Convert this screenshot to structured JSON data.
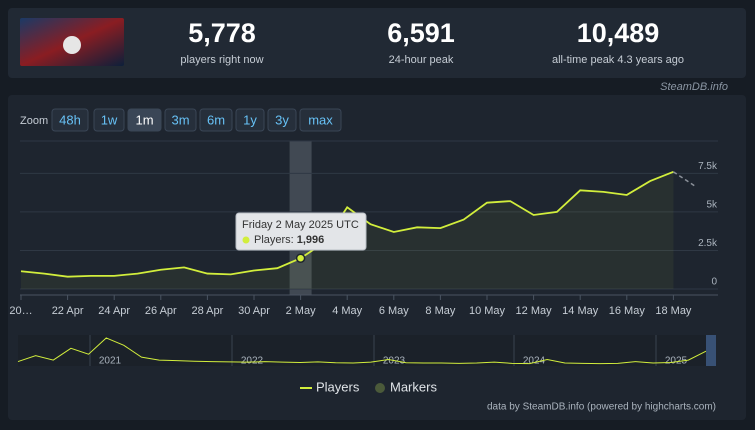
{
  "stats": [
    {
      "value": "5,778",
      "label": "players right now"
    },
    {
      "value": "6,591",
      "label": "24-hour peak"
    },
    {
      "value": "10,489",
      "label": "all-time peak 4.3 years ago"
    }
  ],
  "source": "SteamDB.info",
  "zoom": {
    "label": "Zoom",
    "options": [
      "48h",
      "1w",
      "1m",
      "3m",
      "6m",
      "1y",
      "3y",
      "max"
    ],
    "active": "1m"
  },
  "chart_data": {
    "type": "line",
    "categories": [
      "20…",
      null,
      "22 Apr",
      null,
      "24 Apr",
      null,
      "26 Apr",
      null,
      "28 Apr",
      null,
      "30 Apr",
      null,
      "2 May",
      null,
      "4 May",
      null,
      "6 May",
      null,
      "8 May",
      null,
      "10 May",
      null,
      "12 May",
      null,
      "14 May",
      null,
      "16 May",
      null,
      "18 May",
      null
    ],
    "series": [
      {
        "name": "Players",
        "color": "#d2ee3c",
        "values": [
          1150,
          1000,
          800,
          850,
          850,
          1000,
          1250,
          1400,
          1000,
          950,
          1200,
          1350,
          1996,
          3000,
          5300,
          4200,
          3700,
          4000,
          3950,
          4500,
          5600,
          5700,
          4800,
          5000,
          6400,
          6300,
          6100,
          7000,
          7600,
          6600
        ]
      }
    ],
    "ylim": [
      0,
      9600
    ],
    "yticks": [
      0,
      {
        "value": 2500,
        "label": "2.5k"
      },
      {
        "value": 5000,
        "label": "5k"
      },
      {
        "value": 7500,
        "label": "7.5k"
      }
    ],
    "grid": true,
    "tooltip": {
      "index": 12,
      "title": "Friday 2 May 2025 UTC",
      "series_label": "Players:",
      "value_label": "1,996"
    },
    "legend": [
      "Players",
      "Markers"
    ],
    "credits": "data by SteamDB.info (powered by highcharts.com)"
  },
  "navigator": {
    "labels": [
      "2021",
      "2022",
      "2023",
      "2024",
      "2025"
    ],
    "ylim": [
      0,
      10500
    ],
    "values": [
      1500,
      3500,
      2000,
      6000,
      4000,
      9500,
      7000,
      3000,
      2000,
      1800,
      1600,
      1500,
      1400,
      1300,
      1500,
      1300,
      1200,
      1400,
      1100,
      1000,
      1300,
      2200,
      1100,
      1000,
      1000,
      900,
      1000,
      1300,
      900,
      800,
      2200,
      1000,
      900,
      800,
      900,
      1500,
      1000,
      1200,
      2000,
      5000
    ]
  }
}
